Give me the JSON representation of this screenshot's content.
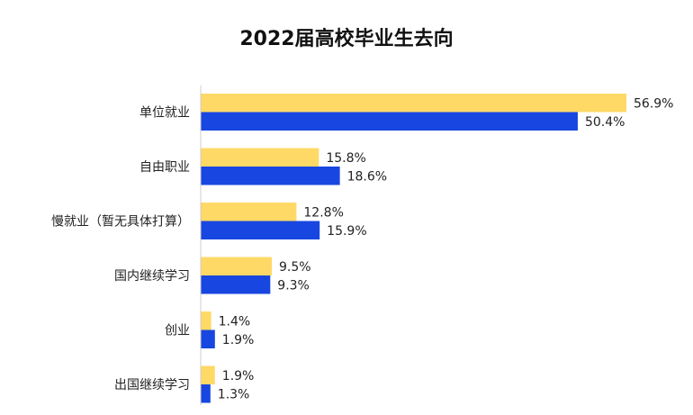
{
  "chart_data": {
    "type": "bar",
    "orientation": "horizontal",
    "title": "2022届高校毕业生去向",
    "categories": [
      "单位就业",
      "自由职业",
      "慢就业（暂无具体打算）",
      "国内继续学习",
      "创业",
      "出国继续学习"
    ],
    "series": [
      {
        "color": "#FFD966",
        "values": [
          56.9,
          15.8,
          12.8,
          9.5,
          1.4,
          1.9
        ],
        "labels": [
          "56.9%",
          "15.8%",
          "12.8%",
          "9.5%",
          "1.4%",
          "1.9%"
        ]
      },
      {
        "color": "#1846E0",
        "values": [
          50.4,
          18.6,
          15.9,
          9.3,
          1.9,
          1.3
        ],
        "labels": [
          "50.4%",
          "18.6%",
          "15.9%",
          "9.3%",
          "1.9%",
          "1.3%"
        ]
      }
    ],
    "xlim": [
      0,
      56.9
    ],
    "grid": false,
    "legend": "none"
  }
}
